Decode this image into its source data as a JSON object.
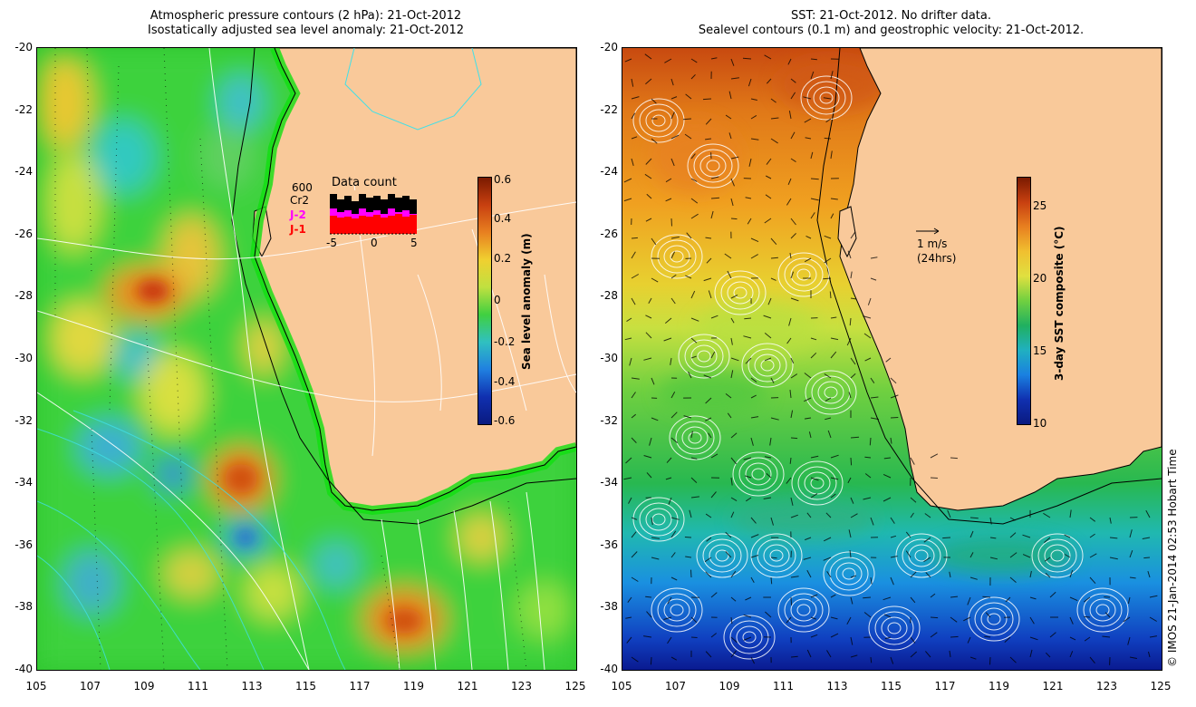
{
  "left_panel": {
    "title_line1": "Atmospheric pressure contours (2 hPa): 21-Oct-2012",
    "title_line2": "Isostatically adjusted sea level anomaly: 21-Oct-2012",
    "y_ticks": [
      "-20",
      "-22",
      "-24",
      "-26",
      "-28",
      "-30",
      "-32",
      "-34",
      "-36",
      "-38",
      "-40"
    ],
    "x_ticks": [
      "105",
      "107",
      "109",
      "111",
      "113",
      "115",
      "117",
      "119",
      "121",
      "123",
      "125"
    ],
    "colorbar": {
      "title": "Sea level anomaly (m)",
      "labels": [
        "0.6",
        "0.4",
        "0.2",
        "0",
        "-0.2",
        "-0.4",
        "-0.6"
      ],
      "range": [
        -0.6,
        0.6
      ]
    },
    "data_count": {
      "title": "Data count",
      "max_label": "600",
      "series_labels": [
        {
          "text": "Cr2",
          "color": "#000000"
        },
        {
          "text": "J-2",
          "color": "#ff00ff"
        },
        {
          "text": "J-1",
          "color": "#ff0000"
        }
      ],
      "x_ticks": [
        "-5",
        "0",
        "5"
      ]
    }
  },
  "right_panel": {
    "title_line1": "SST: 21-Oct-2012. No drifter data.",
    "title_line2": "Sealevel contours (0.1 m) and geostrophic velocity: 21-Oct-2012.",
    "y_ticks": [
      "-20",
      "-22",
      "-24",
      "-26",
      "-28",
      "-30",
      "-32",
      "-34",
      "-36",
      "-38",
      "-40"
    ],
    "x_ticks": [
      "105",
      "107",
      "109",
      "111",
      "113",
      "115",
      "117",
      "119",
      "121",
      "123",
      "125"
    ],
    "colorbar": {
      "title": "3-day SST composite (°C)",
      "labels": [
        "25",
        "20",
        "15",
        "10"
      ],
      "range": [
        10,
        27
      ]
    },
    "velocity_scale": {
      "label": "1 m/s",
      "sublabel": "(24hrs)"
    }
  },
  "credit": "© IMOS 21-Jan-2014 02:53 Hobart Time",
  "colors": {
    "land": "#f9c99a",
    "coast": "#000000",
    "contour": "#ffffff",
    "cyan_contour": "#40e0e8"
  }
}
